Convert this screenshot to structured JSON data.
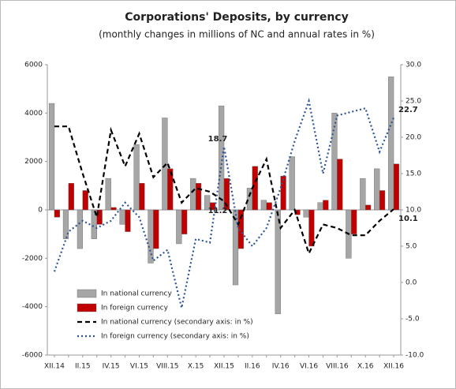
{
  "chart_data": {
    "type": "bar-line",
    "title": "Corporations' Deposits, by currency",
    "subtitle": "(monthly changes in millions of NC and annual rates in %)",
    "categories": [
      "XII.14",
      null,
      "II.15",
      null,
      "IV.15",
      null,
      "VI.15",
      null,
      "VIII.15",
      null,
      "X.15",
      null,
      "XII.15",
      null,
      "II.16",
      null,
      "IV.16",
      null,
      "VI.16",
      null,
      "VIII.16",
      null,
      "X.16",
      null,
      "XII.16"
    ],
    "series": [
      {
        "name": "In national currency",
        "kind": "bar",
        "color": "#a6a6a6",
        "values": [
          4400,
          -1200,
          -1600,
          -1200,
          1300,
          -600,
          2700,
          -2200,
          3800,
          -1400,
          1300,
          600,
          4300,
          -3100,
          900,
          400,
          -4300,
          2200,
          -300,
          300,
          4000,
          -2000,
          1300,
          1700,
          5500
        ]
      },
      {
        "name": "In foreign currency",
        "kind": "bar",
        "color": "#c00000",
        "values": [
          -300,
          1100,
          800,
          -600,
          100,
          -900,
          1100,
          -1600,
          1700,
          -1000,
          1100,
          300,
          1300,
          -1600,
          1800,
          300,
          1400,
          -200,
          -1500,
          400,
          2100,
          -1000,
          200,
          800,
          1900
        ]
      },
      {
        "name": "In national currency (secondary axis: in %)",
        "kind": "line",
        "axis": "y2",
        "color": "#000000",
        "dash": "6,4",
        "label_indices": [
          12,
          24
        ],
        "values": [
          21.5,
          21.5,
          15,
          9,
          21,
          16,
          20.5,
          14.5,
          16.5,
          11,
          13,
          12.5,
          11.2,
          8,
          13,
          17,
          7.5,
          10,
          4,
          8,
          7.5,
          6.5,
          6.5,
          8.5,
          10.1
        ]
      },
      {
        "name": "In foreign currency (secondary axis: in %)",
        "kind": "line",
        "axis": "y2",
        "color": "#2e5597",
        "dash": "2,3",
        "label_indices": [
          12,
          24
        ],
        "values": [
          1.5,
          7,
          8.5,
          7.5,
          8.5,
          11,
          9,
          3,
          4.5,
          -3.5,
          6,
          5.5,
          18.7,
          7.5,
          5,
          7.5,
          13,
          19.5,
          25,
          15,
          23,
          23.5,
          24,
          18,
          22.7
        ]
      }
    ],
    "ylim": [
      -6000,
      6000
    ],
    "yticks": [
      -6000,
      -4000,
      -2000,
      0,
      2000,
      4000,
      6000
    ],
    "y2lim": [
      -10,
      30
    ],
    "y2ticks": [
      {
        "value": -10,
        "label": "-10.0"
      },
      {
        "value": -5,
        "label": "-5.0"
      },
      {
        "value": 0,
        "label": "0.0"
      },
      {
        "value": 5,
        "label": "5.0"
      },
      {
        "value": 10,
        "label": "10.0"
      },
      {
        "value": 15,
        "label": "15.0"
      },
      {
        "value": 20,
        "label": "20.0"
      },
      {
        "value": 25,
        "label": "25.0"
      },
      {
        "value": 30,
        "label": "30.0"
      }
    ],
    "legend": "lower left"
  }
}
